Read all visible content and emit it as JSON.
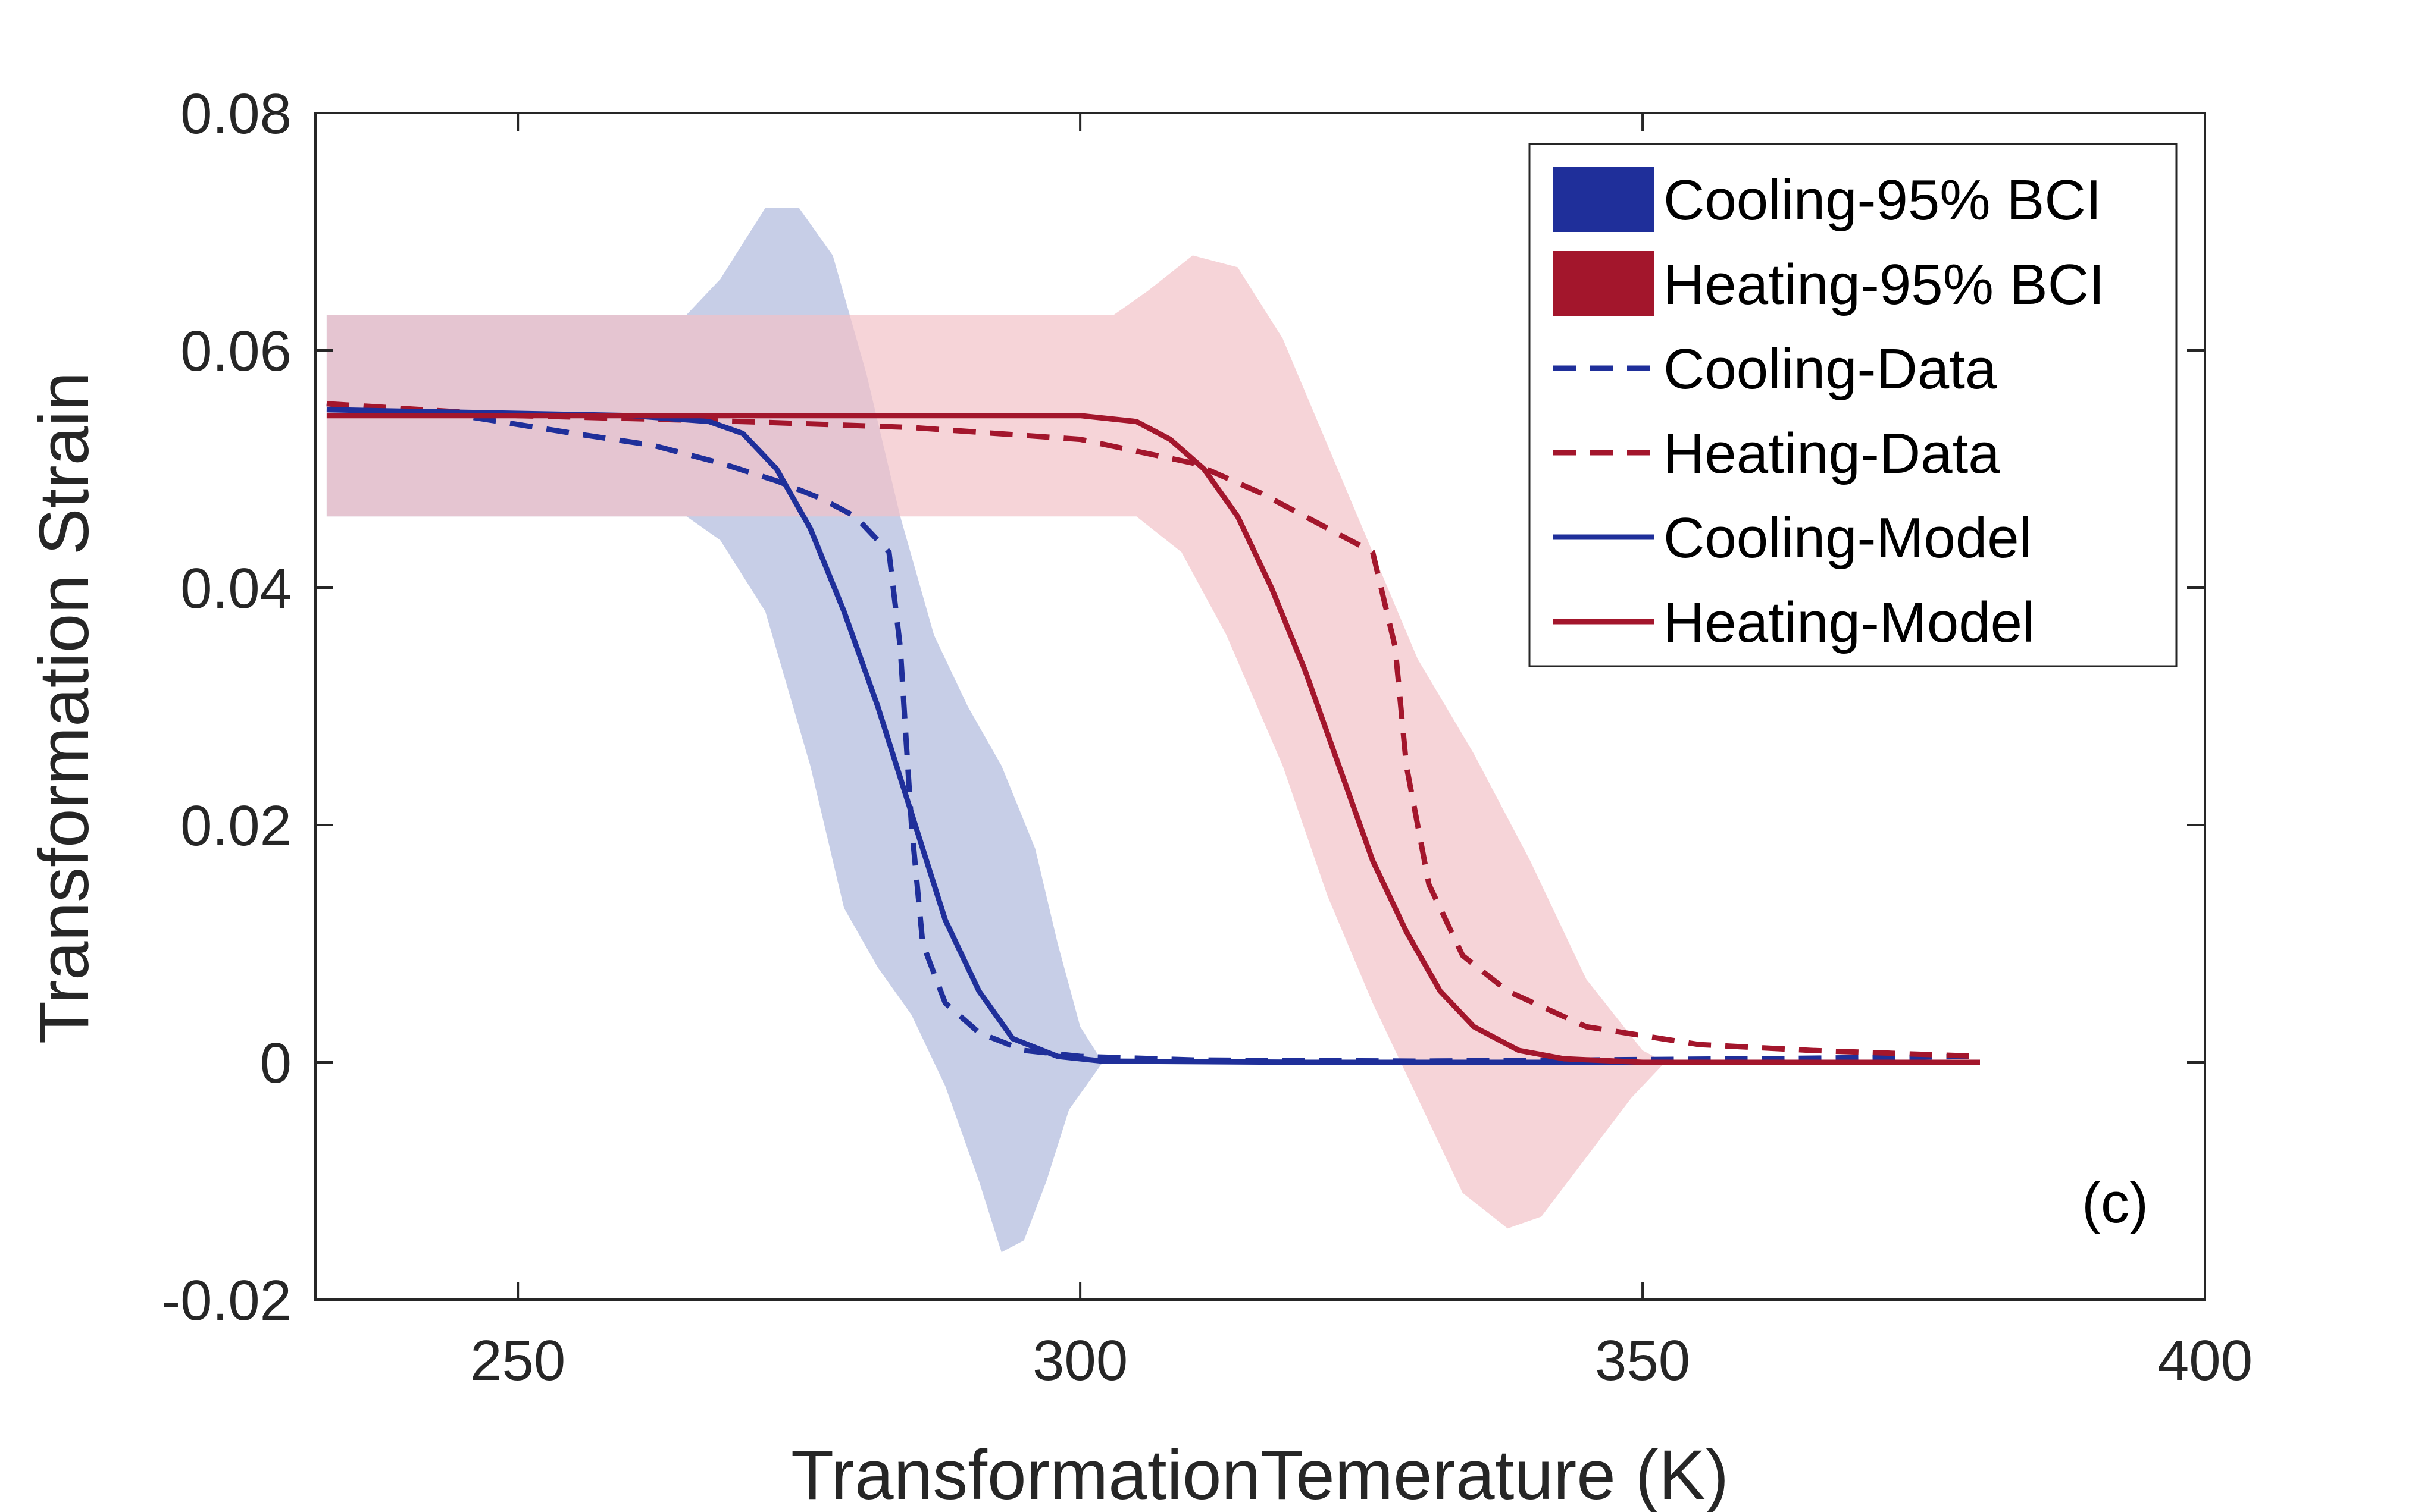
{
  "chart_data": {
    "type": "line",
    "xlabel": "TransformationTemerature (K)",
    "ylabel": "Transformation Strain",
    "xlim": [
      232,
      400
    ],
    "ylim": [
      -0.02,
      0.08
    ],
    "xticks": [
      250,
      300,
      350,
      400
    ],
    "yticks": [
      -0.02,
      0,
      0.02,
      0.04,
      0.06,
      0.08
    ],
    "xtick_labels": [
      "250",
      "300",
      "350",
      "400"
    ],
    "ytick_labels": [
      "-0.02",
      "0",
      "0.02",
      "0.04",
      "0.06",
      "0.08"
    ],
    "grid": false,
    "legend_position": "top-right",
    "annotation": "(c)",
    "colors": {
      "cooling": "#1f2f9a",
      "heating": "#a3162c",
      "cooling_band": "#b4bedf",
      "heating_band": "#f2c2c8",
      "overlap_band": "#cbadc0"
    },
    "bands": [
      {
        "name": "Cooling-95% BCI",
        "upper": [
          [
            233,
            0.063
          ],
          [
            265,
            0.063
          ],
          [
            268,
            0.066
          ],
          [
            272,
            0.072
          ],
          [
            275,
            0.072
          ],
          [
            278,
            0.068
          ],
          [
            281,
            0.058
          ],
          [
            284,
            0.046
          ],
          [
            287,
            0.036
          ],
          [
            290,
            0.03
          ],
          [
            293,
            0.025
          ],
          [
            296,
            0.018
          ],
          [
            298,
            0.01
          ],
          [
            300,
            0.003
          ],
          [
            302,
            0
          ]
        ],
        "lower": [
          [
            233,
            0.046
          ],
          [
            265,
            0.046
          ],
          [
            268,
            0.044
          ],
          [
            272,
            0.038
          ],
          [
            276,
            0.025
          ],
          [
            279,
            0.013
          ],
          [
            282,
            0.008
          ],
          [
            285,
            0.004
          ],
          [
            288,
            -0.002
          ],
          [
            291,
            -0.01
          ],
          [
            293,
            -0.016
          ],
          [
            295,
            -0.015
          ],
          [
            297,
            -0.01
          ],
          [
            299,
            -0.004
          ],
          [
            302,
            0
          ]
        ]
      },
      {
        "name": "Heating-95% BCI",
        "upper": [
          [
            233,
            0.063
          ],
          [
            303,
            0.063
          ],
          [
            306,
            0.065
          ],
          [
            310,
            0.068
          ],
          [
            314,
            0.067
          ],
          [
            318,
            0.061
          ],
          [
            322,
            0.052
          ],
          [
            326,
            0.043
          ],
          [
            330,
            0.034
          ],
          [
            335,
            0.026
          ],
          [
            340,
            0.017
          ],
          [
            345,
            0.007
          ],
          [
            350,
            0.001
          ],
          [
            352,
            0
          ]
        ],
        "lower": [
          [
            233,
            0.046
          ],
          [
            305,
            0.046
          ],
          [
            309,
            0.043
          ],
          [
            313,
            0.036
          ],
          [
            318,
            0.025
          ],
          [
            322,
            0.014
          ],
          [
            326,
            0.005
          ],
          [
            330,
            -0.003
          ],
          [
            334,
            -0.011
          ],
          [
            338,
            -0.014
          ],
          [
            341,
            -0.013
          ],
          [
            345,
            -0.008
          ],
          [
            349,
            -0.003
          ],
          [
            352,
            0
          ]
        ]
      }
    ],
    "series": [
      {
        "name": "Cooling-Data",
        "style": "dashed",
        "points": [
          [
            233,
            0.0555
          ],
          [
            245,
            0.0545
          ],
          [
            255,
            0.053
          ],
          [
            262,
            0.052
          ],
          [
            268,
            0.0505
          ],
          [
            273,
            0.049
          ],
          [
            277,
            0.0475
          ],
          [
            280,
            0.046
          ],
          [
            283,
            0.043
          ],
          [
            284,
            0.035
          ],
          [
            285,
            0.02
          ],
          [
            286,
            0.01
          ],
          [
            288,
            0.005
          ],
          [
            291,
            0.0025
          ],
          [
            295,
            0.001
          ],
          [
            300,
            0.0005
          ],
          [
            310,
            0.0002
          ],
          [
            330,
            0.0001
          ],
          [
            360,
            0.0003
          ],
          [
            380,
            0.0005
          ]
        ]
      },
      {
        "name": "Heating-Data",
        "style": "dashed",
        "points": [
          [
            233,
            0.0555
          ],
          [
            250,
            0.0545
          ],
          [
            270,
            0.054
          ],
          [
            285,
            0.0535
          ],
          [
            300,
            0.0525
          ],
          [
            310,
            0.0505
          ],
          [
            316,
            0.048
          ],
          [
            322,
            0.045
          ],
          [
            326,
            0.043
          ],
          [
            328,
            0.035
          ],
          [
            329,
            0.025
          ],
          [
            331,
            0.015
          ],
          [
            334,
            0.009
          ],
          [
            338,
            0.006
          ],
          [
            345,
            0.003
          ],
          [
            355,
            0.0015
          ],
          [
            365,
            0.001
          ],
          [
            380,
            0.0005
          ]
        ]
      },
      {
        "name": "Cooling-Model",
        "style": "solid",
        "points": [
          [
            233,
            0.055
          ],
          [
            260,
            0.0545
          ],
          [
            267,
            0.054
          ],
          [
            270,
            0.053
          ],
          [
            273,
            0.05
          ],
          [
            276,
            0.045
          ],
          [
            279,
            0.038
          ],
          [
            282,
            0.03
          ],
          [
            285,
            0.021
          ],
          [
            288,
            0.012
          ],
          [
            291,
            0.006
          ],
          [
            294,
            0.002
          ],
          [
            298,
            0.0005
          ],
          [
            302,
            0.0001
          ],
          [
            320,
            0
          ],
          [
            380,
            0
          ]
        ]
      },
      {
        "name": "Heating-Model",
        "style": "solid",
        "points": [
          [
            233,
            0.0545
          ],
          [
            300,
            0.0545
          ],
          [
            305,
            0.054
          ],
          [
            308,
            0.0525
          ],
          [
            311,
            0.05
          ],
          [
            314,
            0.046
          ],
          [
            317,
            0.04
          ],
          [
            320,
            0.033
          ],
          [
            323,
            0.025
          ],
          [
            326,
            0.017
          ],
          [
            329,
            0.011
          ],
          [
            332,
            0.006
          ],
          [
            335,
            0.003
          ],
          [
            339,
            0.001
          ],
          [
            343,
            0.0003
          ],
          [
            350,
            0
          ],
          [
            380,
            0
          ]
        ]
      }
    ]
  }
}
